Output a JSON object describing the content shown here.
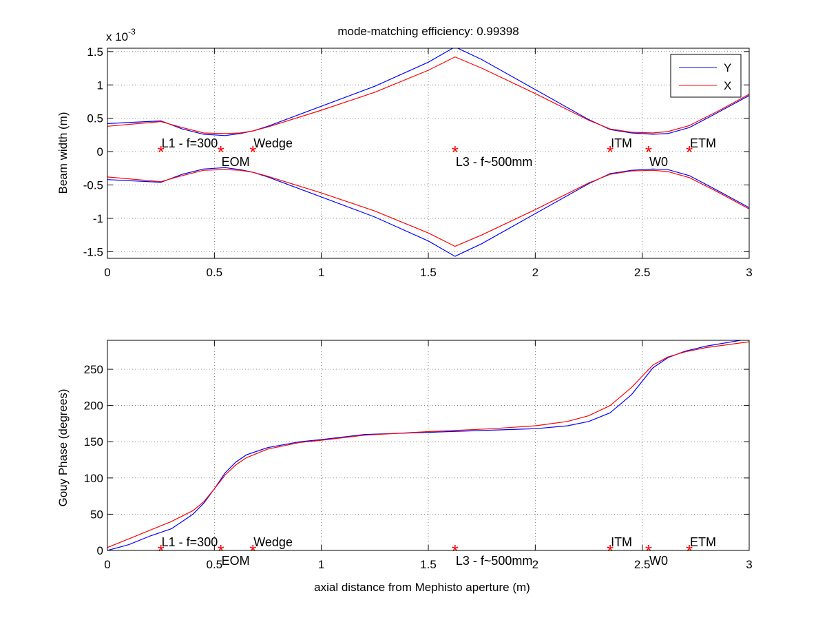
{
  "chart_data": [
    {
      "type": "line",
      "title": "mode-matching efficiency: 0.99398",
      "xlabel": "",
      "ylabel": "Beam width (m)",
      "exponent_label": "x 10",
      "exponent_power": "-3",
      "xlim": [
        0,
        3
      ],
      "ylim": [
        -1.6,
        1.55
      ],
      "xticks": [
        0,
        0.5,
        1,
        1.5,
        2,
        2.5,
        3
      ],
      "xtick_labels": [
        "0",
        "0.5",
        "1",
        "1.5",
        "2",
        "2.5",
        "3"
      ],
      "yticks": [
        -1.5,
        -1,
        -0.5,
        0,
        0.5,
        1,
        1.5
      ],
      "ytick_labels": [
        "-1.5",
        "-1",
        "-0.5",
        "0",
        "0.5",
        "1",
        "1.5"
      ],
      "grid": true,
      "legend_position": "top-right",
      "series": [
        {
          "name": "Y",
          "color": "#0000ff",
          "x": [
            0,
            0.25,
            0.35,
            0.45,
            0.55,
            0.62,
            0.68,
            0.75,
            1.0,
            1.25,
            1.5,
            1.625,
            1.75,
            2.0,
            2.25,
            2.35,
            2.45,
            2.55,
            2.62,
            2.72,
            2.85,
            3.0
          ],
          "values": [
            0.42,
            0.46,
            0.34,
            0.26,
            0.24,
            0.27,
            0.31,
            0.38,
            0.68,
            0.98,
            1.34,
            1.57,
            1.38,
            0.93,
            0.48,
            0.33,
            0.28,
            0.26,
            0.27,
            0.36,
            0.58,
            0.84
          ]
        },
        {
          "name": "",
          "color": "#0000ff",
          "x": [
            0,
            0.25,
            0.35,
            0.45,
            0.55,
            0.62,
            0.68,
            0.75,
            1.0,
            1.25,
            1.5,
            1.625,
            1.75,
            2.0,
            2.25,
            2.35,
            2.45,
            2.55,
            2.62,
            2.72,
            2.85,
            3.0
          ],
          "values": [
            -0.42,
            -0.46,
            -0.34,
            -0.26,
            -0.24,
            -0.27,
            -0.31,
            -0.38,
            -0.68,
            -0.98,
            -1.34,
            -1.57,
            -1.38,
            -0.93,
            -0.48,
            -0.33,
            -0.28,
            -0.26,
            -0.27,
            -0.36,
            -0.58,
            -0.84
          ]
        },
        {
          "name": "X",
          "color": "#ff0000",
          "x": [
            0,
            0.25,
            0.35,
            0.45,
            0.55,
            0.62,
            0.68,
            0.75,
            1.0,
            1.25,
            1.5,
            1.625,
            1.75,
            2.0,
            2.25,
            2.35,
            2.45,
            2.55,
            2.62,
            2.72,
            2.85,
            3.0
          ],
          "values": [
            0.38,
            0.45,
            0.36,
            0.28,
            0.27,
            0.28,
            0.31,
            0.37,
            0.62,
            0.89,
            1.22,
            1.42,
            1.25,
            0.87,
            0.47,
            0.34,
            0.29,
            0.28,
            0.3,
            0.39,
            0.6,
            0.86
          ]
        },
        {
          "name": "",
          "color": "#ff0000",
          "x": [
            0,
            0.25,
            0.35,
            0.45,
            0.55,
            0.62,
            0.68,
            0.75,
            1.0,
            1.25,
            1.5,
            1.625,
            1.75,
            2.0,
            2.25,
            2.35,
            2.45,
            2.55,
            2.62,
            2.72,
            2.85,
            3.0
          ],
          "values": [
            -0.38,
            -0.45,
            -0.36,
            -0.28,
            -0.27,
            -0.28,
            -0.31,
            -0.37,
            -0.62,
            -0.89,
            -1.22,
            -1.42,
            -1.25,
            -0.87,
            -0.47,
            -0.34,
            -0.29,
            -0.28,
            -0.3,
            -0.39,
            -0.6,
            -0.86
          ]
        }
      ],
      "markers": {
        "color": "#ff0000",
        "symbol": "*",
        "points": [
          {
            "x": 0.25,
            "y": 0,
            "label": "L1 - f=300",
            "label_pos": "above"
          },
          {
            "x": 0.53,
            "y": 0,
            "label": "EOM",
            "label_pos": "below"
          },
          {
            "x": 0.68,
            "y": 0,
            "label": "Wedge",
            "label_pos": "above"
          },
          {
            "x": 1.625,
            "y": 0,
            "label": "L3 - f~500mm",
            "label_pos": "below"
          },
          {
            "x": 2.35,
            "y": 0,
            "label": "ITM",
            "label_pos": "above"
          },
          {
            "x": 2.53,
            "y": 0,
            "label": "W0",
            "label_pos": "below"
          },
          {
            "x": 2.72,
            "y": 0,
            "label": "ETM",
            "label_pos": "above"
          }
        ]
      }
    },
    {
      "type": "line",
      "title": "",
      "xlabel": "axial distance from Mephisto aperture (m)",
      "ylabel": "Gouy Phase (degrees)",
      "xlim": [
        0,
        3
      ],
      "ylim": [
        0,
        290
      ],
      "xticks": [
        0,
        0.5,
        1,
        1.5,
        2,
        2.5,
        3
      ],
      "xtick_labels": [
        "0",
        "0.5",
        "1",
        "1.5",
        "2",
        "2.5",
        "3"
      ],
      "yticks": [
        0,
        50,
        100,
        150,
        200,
        250
      ],
      "ytick_labels": [
        "0",
        "50",
        "100",
        "150",
        "200",
        "250"
      ],
      "grid": true,
      "series": [
        {
          "name": "Y",
          "color": "#0000ff",
          "x": [
            0,
            0.1,
            0.2,
            0.3,
            0.4,
            0.45,
            0.5,
            0.55,
            0.6,
            0.65,
            0.75,
            0.9,
            1.0,
            1.2,
            1.5,
            1.8,
            2.0,
            2.15,
            2.25,
            2.35,
            2.45,
            2.55,
            2.62,
            2.7,
            2.8,
            3.0
          ],
          "values": [
            0,
            8,
            20,
            30,
            50,
            65,
            85,
            107,
            122,
            132,
            142,
            150,
            153,
            160,
            163,
            166,
            168,
            172,
            178,
            190,
            215,
            252,
            266,
            275,
            282,
            292
          ]
        },
        {
          "name": "X",
          "color": "#ff0000",
          "x": [
            0,
            0.1,
            0.2,
            0.3,
            0.4,
            0.45,
            0.5,
            0.55,
            0.6,
            0.65,
            0.75,
            0.9,
            1.0,
            1.2,
            1.5,
            1.8,
            2.0,
            2.15,
            2.25,
            2.35,
            2.45,
            2.55,
            2.62,
            2.7,
            2.8,
            3.0
          ],
          "values": [
            4,
            16,
            28,
            40,
            55,
            67,
            85,
            104,
            118,
            128,
            140,
            149,
            152,
            159,
            164,
            168,
            172,
            178,
            186,
            200,
            225,
            256,
            267,
            274,
            280,
            288
          ]
        }
      ],
      "markers": {
        "color": "#ff0000",
        "symbol": "*",
        "points": [
          {
            "x": 0.25,
            "y": 0,
            "label": "L1 - f=300",
            "label_pos": "above"
          },
          {
            "x": 0.53,
            "y": 0,
            "label": "EOM",
            "label_pos": "below"
          },
          {
            "x": 0.68,
            "y": 0,
            "label": "Wedge",
            "label_pos": "above"
          },
          {
            "x": 1.625,
            "y": 0,
            "label": "L3 - f~500mm",
            "label_pos": "below"
          },
          {
            "x": 2.35,
            "y": 0,
            "label": "ITM",
            "label_pos": "above"
          },
          {
            "x": 2.53,
            "y": 0,
            "label": "W0",
            "label_pos": "below"
          },
          {
            "x": 2.72,
            "y": 0,
            "label": "ETM",
            "label_pos": "above"
          }
        ]
      }
    }
  ]
}
